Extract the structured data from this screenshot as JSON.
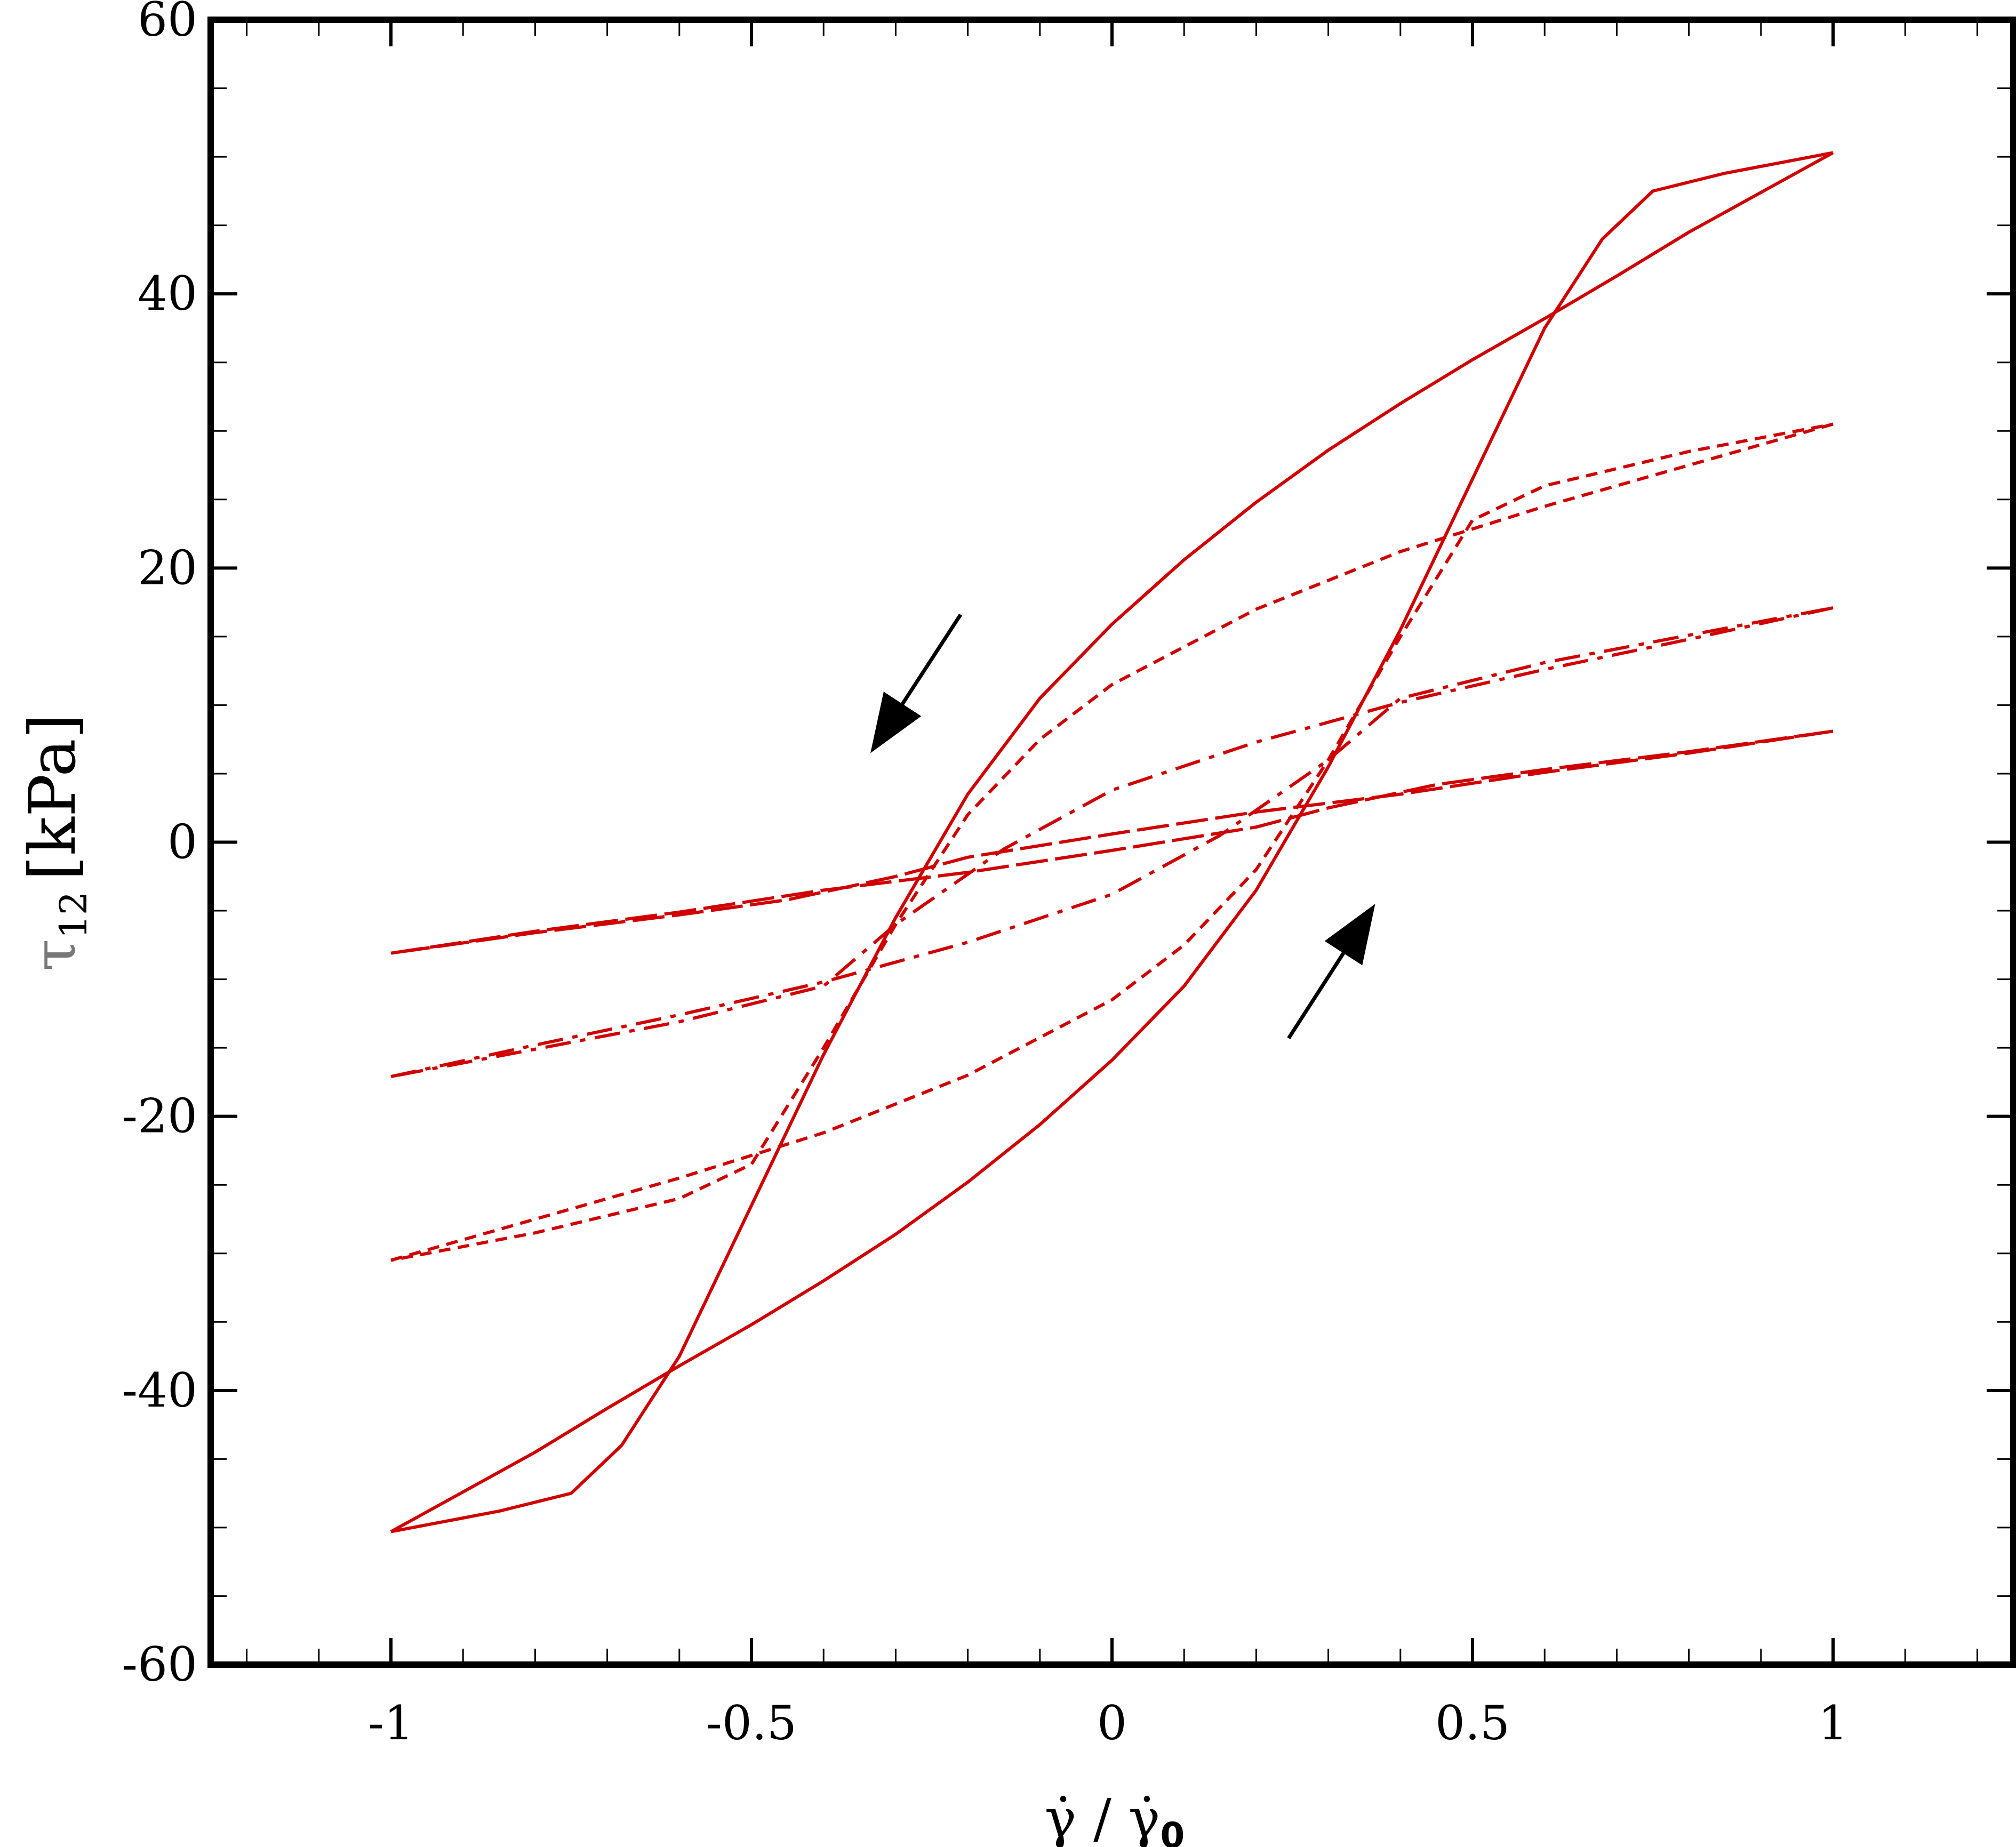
{
  "chart_data": {
    "type": "line",
    "xlabel": {
      "text_main": "γ̇",
      "separator": " / ",
      "text_ref": "γ̇",
      "subscript": "0"
    },
    "ylabel": {
      "symbol": "τ",
      "subscript": "12",
      "unit": "[kPa]"
    },
    "xlim": [
      -1.25,
      1.25
    ],
    "ylim": [
      -60,
      60
    ],
    "x_ticks": [
      -1,
      -0.5,
      0,
      0.5,
      1
    ],
    "x_tick_labels": [
      "-1",
      "-0.5",
      "0",
      "0.5",
      "1"
    ],
    "y_ticks": [
      -60,
      -40,
      -20,
      0,
      20,
      40,
      60
    ],
    "y_tick_labels": [
      "-60",
      "-40",
      "-20",
      "0",
      "20",
      "40",
      "60"
    ],
    "grid": false,
    "line_color": "#d00000",
    "series": [
      {
        "style": "solid",
        "amplitude": 50.3,
        "upper": [
          [
            -1,
            -50.3
          ],
          [
            -0.9,
            -47.4
          ],
          [
            -0.8,
            -44.5
          ],
          [
            -0.7,
            -41.3
          ],
          [
            -0.6,
            -38.2
          ],
          [
            -0.5,
            -35.2
          ],
          [
            -0.4,
            -32.0
          ],
          [
            -0.3,
            -28.6
          ],
          [
            -0.2,
            -24.8
          ],
          [
            -0.1,
            -20.6
          ],
          [
            0,
            -15.9
          ],
          [
            0.1,
            -10.5
          ],
          [
            0.2,
            -3.5
          ],
          [
            0.3,
            5.5
          ],
          [
            0.4,
            15.5
          ],
          [
            0.5,
            26.5
          ],
          [
            0.6,
            37.5
          ],
          [
            0.68,
            44.0
          ],
          [
            0.75,
            47.5
          ],
          [
            0.85,
            48.8
          ],
          [
            1,
            50.3
          ]
        ]
      },
      {
        "style": "long-dash",
        "amplitude": 8.1,
        "upper": [
          [
            -1,
            -8.1
          ],
          [
            -0.8,
            -6.5
          ],
          [
            -0.6,
            -5.1
          ],
          [
            -0.4,
            -3.5
          ],
          [
            -0.2,
            -2.2
          ],
          [
            0,
            -0.6
          ],
          [
            0.2,
            1.1
          ],
          [
            0.3,
            2.5
          ],
          [
            0.45,
            4.2
          ],
          [
            0.6,
            5.3
          ],
          [
            0.8,
            6.6
          ],
          [
            1,
            8.1
          ]
        ]
      },
      {
        "style": "dash-dot",
        "amplitude": 17.1,
        "upper": [
          [
            -1,
            -17.1
          ],
          [
            -0.8,
            -14.8
          ],
          [
            -0.6,
            -12.6
          ],
          [
            -0.4,
            -10.2
          ],
          [
            -0.2,
            -7.3
          ],
          [
            0,
            -3.8
          ],
          [
            0.15,
            0.5
          ],
          [
            0.3,
            6.0
          ],
          [
            0.4,
            10.5
          ],
          [
            0.6,
            13.1
          ],
          [
            0.8,
            15.1
          ],
          [
            1,
            17.1
          ]
        ]
      },
      {
        "style": "short-dash",
        "amplitude": 30.5,
        "upper": [
          [
            -1,
            -30.5
          ],
          [
            -0.8,
            -27.5
          ],
          [
            -0.6,
            -24.5
          ],
          [
            -0.4,
            -21.2
          ],
          [
            -0.2,
            -17.0
          ],
          [
            0,
            -11.5
          ],
          [
            0.1,
            -7.5
          ],
          [
            0.2,
            -2.0
          ],
          [
            0.3,
            6.0
          ],
          [
            0.4,
            15.0
          ],
          [
            0.5,
            23.5
          ],
          [
            0.6,
            26.0
          ],
          [
            0.8,
            28.5
          ],
          [
            1,
            30.5
          ]
        ]
      }
    ],
    "annotations": [
      {
        "type": "arrow",
        "direction": "down-left",
        "from": [
          -0.21,
          16.6
        ],
        "to": [
          -0.335,
          6.5
        ]
      },
      {
        "type": "arrow",
        "direction": "up-right",
        "from": [
          0.245,
          -14.3
        ],
        "to": [
          0.365,
          -4.5
        ]
      }
    ]
  }
}
